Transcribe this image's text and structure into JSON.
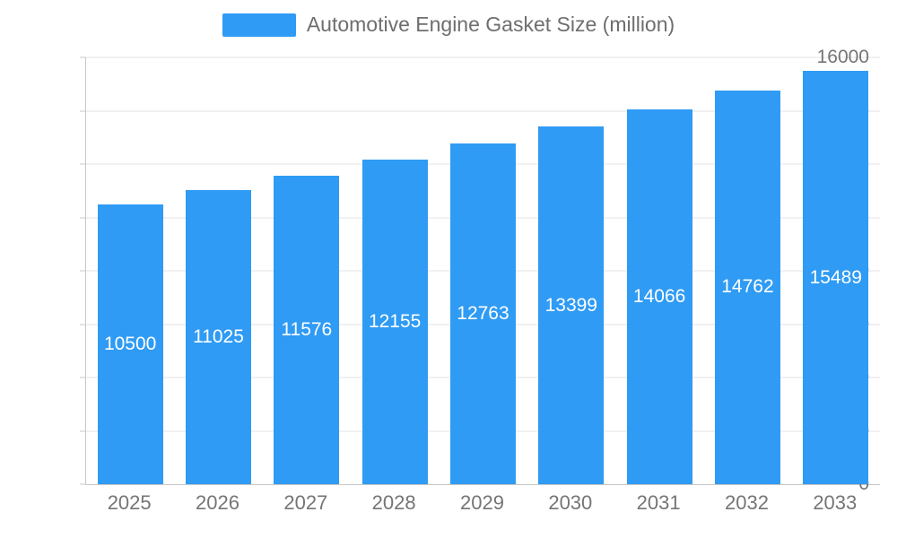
{
  "legend": {
    "label": "Automotive Engine Gasket Size (million)"
  },
  "chart_data": {
    "type": "bar",
    "title": "Automotive Engine Gasket Size (million)",
    "categories": [
      "2025",
      "2026",
      "2027",
      "2028",
      "2029",
      "2030",
      "2031",
      "2032",
      "2033"
    ],
    "values": [
      10500,
      11025,
      11576,
      12155,
      12763,
      13399,
      14066,
      14762,
      15489
    ],
    "xlabel": "",
    "ylabel": "",
    "ylim": [
      0,
      16000
    ],
    "ytick_step": 2000,
    "grid": true,
    "legend_position": "top",
    "colors": {
      "bar": "#2F9BF4",
      "value_label": "#ffffff",
      "axis_text": "#757575",
      "grid_line": "#e3e3e3",
      "axis_line": "#c7c7c7",
      "legend_text": "#6e6e6e"
    }
  }
}
